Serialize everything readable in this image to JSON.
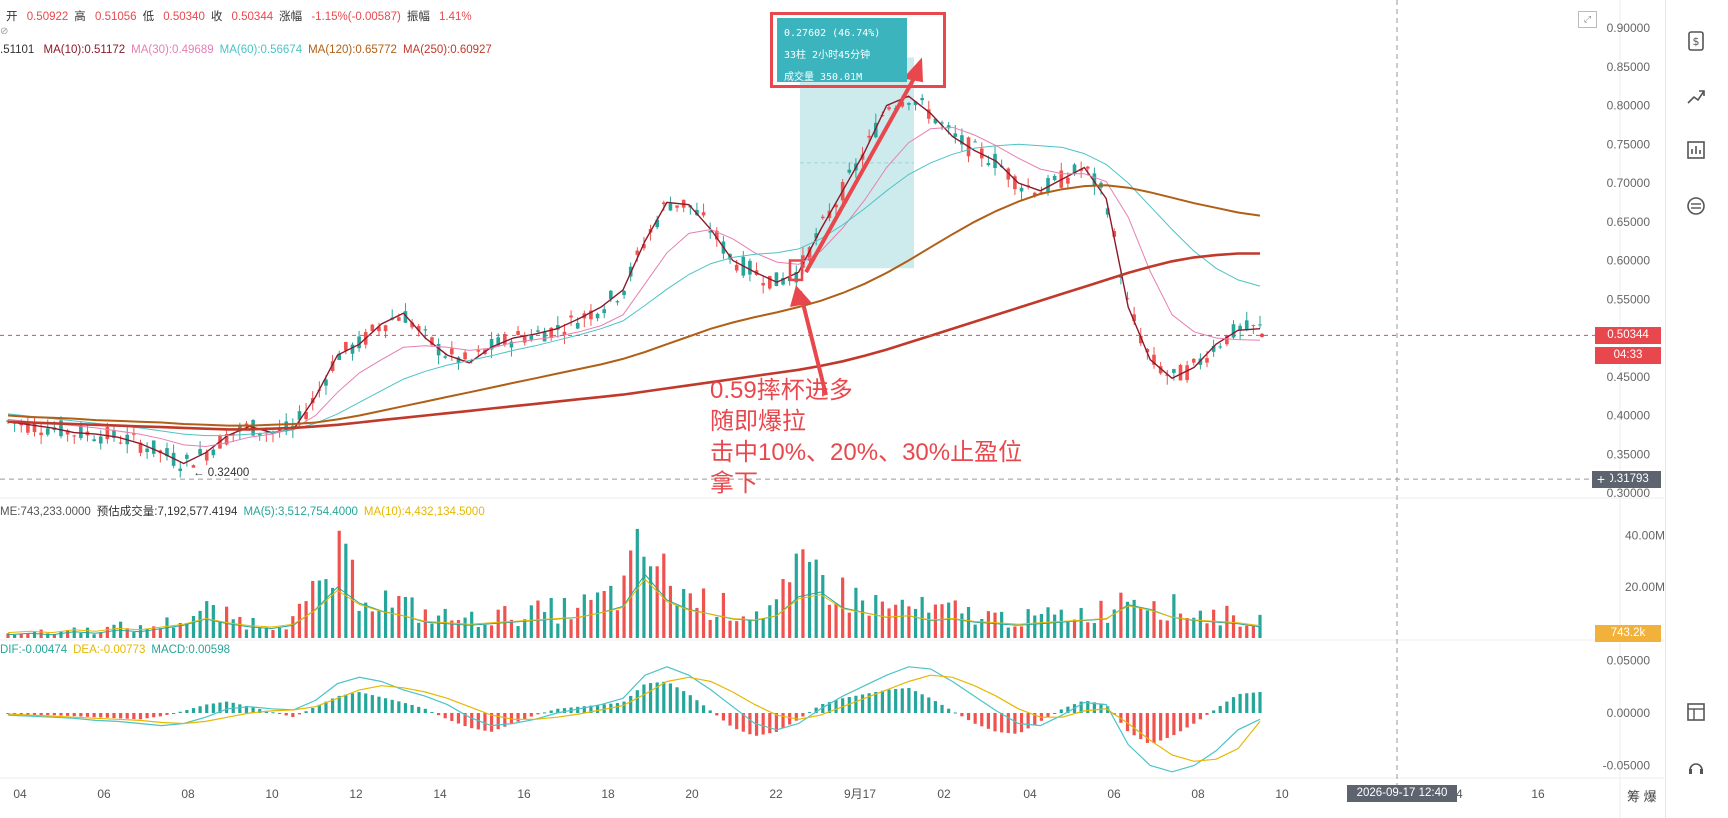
{
  "header": {
    "ohlc": [
      {
        "label": "开",
        "value": "0.50922"
      },
      {
        "label": "高",
        "value": "0.51056"
      },
      {
        "label": "低",
        "value": "0.50340"
      },
      {
        "label": "收",
        "value": "0.50344"
      },
      {
        "label": "涨幅",
        "value": "-1.15%(-0.00587)"
      },
      {
        "label": "振幅",
        "value": "1.41%"
      }
    ],
    "ma_lead": ".51101",
    "ma_lines": [
      {
        "text": "MA(10):0.51172",
        "color": "#8b1a2b"
      },
      {
        "text": "MA(30):0.49689",
        "color": "#e67fb3"
      },
      {
        "text": "MA(60):0.56674",
        "color": "#4cc3c7"
      },
      {
        "text": "MA(120):0.65772",
        "color": "#b05f16"
      },
      {
        "text": "MA(250):0.60927",
        "color": "#c0392b"
      }
    ]
  },
  "volume_header": [
    {
      "text": "ME:743,233.0000",
      "color": "#555555"
    },
    {
      "text": "预估成交量:7,192,577.4194",
      "color": "#333333"
    },
    {
      "text": "MA(5):3,512,754.4000",
      "color": "#26a69a"
    },
    {
      "text": "MA(10):4,432,134.5000",
      "color": "#e6b800"
    }
  ],
  "macd_header": [
    {
      "text": "DIF:-0.00474",
      "color": "#26a69a"
    },
    {
      "text": "DEA:-0.00773",
      "color": "#e6b800"
    },
    {
      "text": "MACD:0.00598",
      "color": "#26a69a"
    }
  ],
  "price_axis": [
    "0.90000",
    "0.85000",
    "0.80000",
    "0.75000",
    "0.70000",
    "0.65000",
    "0.60000",
    "0.55000",
    "0.50000",
    "0.45000",
    "0.40000",
    "0.35000",
    "0.30000"
  ],
  "volume_axis": [
    "40.00M",
    "20.00M"
  ],
  "macd_axis": [
    "0.05000",
    "0.00000",
    "-0.05000"
  ],
  "time_axis": [
    {
      "label": "04",
      "x": 20
    },
    {
      "label": "06",
      "x": 104
    },
    {
      "label": "08",
      "x": 188
    },
    {
      "label": "10",
      "x": 272
    },
    {
      "label": "12",
      "x": 356
    },
    {
      "label": "14",
      "x": 440
    },
    {
      "label": "16",
      "x": 524
    },
    {
      "label": "18",
      "x": 608
    },
    {
      "label": "20",
      "x": 692
    },
    {
      "label": "22",
      "x": 776
    },
    {
      "label": "9月17",
      "x": 860
    },
    {
      "label": "02",
      "x": 944
    },
    {
      "label": "04",
      "x": 1030
    },
    {
      "label": "06",
      "x": 1114
    },
    {
      "label": "08",
      "x": 1198
    },
    {
      "label": "10",
      "x": 1282
    },
    {
      "label": "14",
      "x": 1456
    },
    {
      "label": "16",
      "x": 1538
    }
  ],
  "current_price": "0.50344",
  "countdown": "04:33",
  "cursor_price": "0.31793",
  "cursor_time": "2026-09-17 12:40",
  "current_volume": "743.2k",
  "low_marker": "← 0.32400",
  "tooltip": {
    "line1": "0.27602 (46.74%)",
    "line2": "33柱 2小时45分钟",
    "line3": "成交量 350.01M"
  },
  "annotation": [
    "0.59摔杯进多",
    "随即爆拉",
    "击中10%、20%、30%止盈位",
    "拿下"
  ],
  "bottom_right": "筹 爆",
  "colors": {
    "up": "#26a69a",
    "down": "#ef5350",
    "annotation": "#e8484d",
    "measure": "#cdebed"
  },
  "chart_data": [
    {
      "type": "candlestick",
      "title": "",
      "ylim": [
        0.3,
        0.9
      ],
      "series": [
        {
          "name": "MA(10)",
          "values": [
            0.392,
            0.388,
            0.384,
            0.378,
            0.376,
            0.372,
            0.364,
            0.352,
            0.338,
            0.352,
            0.374,
            0.386,
            0.378,
            0.382,
            0.424,
            0.478,
            0.492,
            0.518,
            0.532,
            0.5,
            0.478,
            0.468,
            0.488,
            0.5,
            0.505,
            0.512,
            0.525,
            0.54,
            0.562,
            0.625,
            0.675,
            0.672,
            0.64,
            0.6,
            0.585,
            0.572,
            0.585,
            0.64,
            0.69,
            0.74,
            0.8,
            0.812,
            0.79,
            0.76,
            0.742,
            0.728,
            0.7,
            0.69,
            0.705,
            0.72,
            0.68,
            0.54,
            0.472,
            0.448,
            0.462,
            0.492,
            0.51,
            0.512
          ]
        },
        {
          "name": "MA(30)",
          "values": [
            0.395,
            0.392,
            0.39,
            0.387,
            0.384,
            0.38,
            0.376,
            0.37,
            0.362,
            0.36,
            0.365,
            0.372,
            0.376,
            0.383,
            0.4,
            0.43,
            0.455,
            0.472,
            0.488,
            0.49,
            0.488,
            0.484,
            0.487,
            0.494,
            0.498,
            0.502,
            0.508,
            0.516,
            0.53,
            0.57,
            0.61,
            0.635,
            0.64,
            0.628,
            0.61,
            0.598,
            0.595,
            0.612,
            0.642,
            0.678,
            0.72,
            0.752,
            0.77,
            0.772,
            0.762,
            0.748,
            0.732,
            0.718,
            0.712,
            0.712,
            0.702,
            0.656,
            0.586,
            0.53,
            0.508,
            0.5,
            0.498,
            0.497
          ]
        },
        {
          "name": "MA(60)",
          "values": [
            0.402,
            0.399,
            0.396,
            0.393,
            0.39,
            0.387,
            0.384,
            0.38,
            0.376,
            0.374,
            0.374,
            0.376,
            0.378,
            0.382,
            0.39,
            0.402,
            0.417,
            0.432,
            0.447,
            0.457,
            0.465,
            0.471,
            0.477,
            0.484,
            0.49,
            0.497,
            0.504,
            0.512,
            0.522,
            0.542,
            0.563,
            0.582,
            0.596,
            0.604,
            0.608,
            0.61,
            0.615,
            0.628,
            0.646,
            0.667,
            0.69,
            0.711,
            0.726,
            0.737,
            0.745,
            0.748,
            0.75,
            0.748,
            0.746,
            0.738,
            0.724,
            0.7,
            0.67,
            0.64,
            0.612,
            0.59,
            0.575,
            0.567
          ]
        },
        {
          "name": "MA(120)",
          "values": [
            0.4,
            0.398,
            0.397,
            0.396,
            0.394,
            0.393,
            0.392,
            0.391,
            0.389,
            0.388,
            0.387,
            0.387,
            0.388,
            0.389,
            0.391,
            0.395,
            0.4,
            0.406,
            0.412,
            0.418,
            0.424,
            0.43,
            0.436,
            0.442,
            0.448,
            0.454,
            0.46,
            0.466,
            0.473,
            0.482,
            0.492,
            0.502,
            0.512,
            0.52,
            0.527,
            0.533,
            0.54,
            0.548,
            0.558,
            0.57,
            0.584,
            0.6,
            0.617,
            0.634,
            0.65,
            0.664,
            0.676,
            0.686,
            0.692,
            0.696,
            0.697,
            0.694,
            0.688,
            0.681,
            0.674,
            0.668,
            0.662,
            0.658
          ]
        },
        {
          "name": "MA(250)",
          "values": [
            0.392,
            0.391,
            0.39,
            0.389,
            0.388,
            0.387,
            0.386,
            0.385,
            0.384,
            0.383,
            0.382,
            0.382,
            0.383,
            0.384,
            0.386,
            0.388,
            0.391,
            0.394,
            0.397,
            0.4,
            0.403,
            0.406,
            0.409,
            0.412,
            0.415,
            0.418,
            0.421,
            0.424,
            0.427,
            0.431,
            0.435,
            0.439,
            0.443,
            0.447,
            0.451,
            0.455,
            0.459,
            0.464,
            0.47,
            0.477,
            0.485,
            0.494,
            0.503,
            0.512,
            0.521,
            0.53,
            0.539,
            0.548,
            0.557,
            0.566,
            0.575,
            0.584,
            0.592,
            0.599,
            0.604,
            0.607,
            0.609,
            0.609
          ]
        }
      ]
    },
    {
      "type": "bar",
      "title": "",
      "ylim": [
        0,
        50
      ],
      "series": [
        {
          "name": "volume",
          "values": [
            2,
            3,
            2,
            4,
            3,
            5,
            4,
            6,
            8,
            12,
            9,
            7,
            6,
            8,
            18,
            32,
            22,
            17,
            14,
            10,
            9,
            8,
            9,
            10,
            11,
            12,
            13,
            16,
            20,
            40,
            24,
            18,
            15,
            12,
            11,
            14,
            26,
            29,
            19,
            16,
            13,
            14,
            11,
            12,
            10,
            9,
            8,
            9,
            10,
            11,
            12,
            21,
            18,
            13,
            11,
            10,
            9,
            7
          ]
        }
      ]
    },
    {
      "type": "bar",
      "title": "",
      "ylim": [
        -0.06,
        0.06
      ],
      "series": [
        {
          "name": "MACD",
          "values": [
            -0.001,
            -0.002,
            -0.002,
            -0.003,
            -0.004,
            -0.005,
            -0.006,
            -0.003,
            0.002,
            0.008,
            0.011,
            0.006,
            0.001,
            -0.004,
            0.006,
            0.016,
            0.02,
            0.015,
            0.01,
            0.004,
            -0.006,
            -0.014,
            -0.018,
            -0.01,
            -0.002,
            0.004,
            0.006,
            0.008,
            0.01,
            0.028,
            0.03,
            0.018,
            0.002,
            -0.014,
            -0.022,
            -0.018,
            -0.006,
            0.008,
            0.014,
            0.018,
            0.022,
            0.024,
            0.014,
            0.002,
            -0.01,
            -0.018,
            -0.02,
            -0.008,
            0.004,
            0.012,
            0.008,
            -0.018,
            -0.03,
            -0.022,
            -0.01,
            0.004,
            0.018,
            0.02
          ]
        },
        {
          "name": "DIF",
          "values": [
            -0.002,
            -0.003,
            -0.004,
            -0.005,
            -0.007,
            -0.008,
            -0.01,
            -0.012,
            -0.01,
            -0.004,
            0.004,
            0.006,
            0.004,
            0.003,
            0.012,
            0.028,
            0.034,
            0.03,
            0.022,
            0.016,
            0.008,
            -0.004,
            -0.012,
            -0.01,
            -0.006,
            0.0,
            0.004,
            0.008,
            0.014,
            0.036,
            0.044,
            0.036,
            0.022,
            0.006,
            -0.01,
            -0.016,
            -0.01,
            0.004,
            0.016,
            0.026,
            0.036,
            0.044,
            0.042,
            0.03,
            0.016,
            0.002,
            -0.01,
            -0.012,
            -0.002,
            0.01,
            0.008,
            -0.03,
            -0.05,
            -0.056,
            -0.05,
            -0.036,
            -0.016,
            -0.006
          ]
        },
        {
          "name": "DEA",
          "values": [
            -0.001,
            -0.002,
            -0.003,
            -0.004,
            -0.005,
            -0.006,
            -0.007,
            -0.009,
            -0.01,
            -0.008,
            -0.004,
            0.0,
            0.002,
            0.003,
            0.006,
            0.014,
            0.022,
            0.026,
            0.024,
            0.02,
            0.014,
            0.006,
            -0.002,
            -0.006,
            -0.006,
            -0.004,
            -0.001,
            0.003,
            0.007,
            0.018,
            0.03,
            0.034,
            0.03,
            0.02,
            0.008,
            -0.002,
            -0.006,
            -0.002,
            0.006,
            0.014,
            0.022,
            0.03,
            0.036,
            0.034,
            0.026,
            0.016,
            0.004,
            -0.004,
            -0.004,
            0.002,
            0.004,
            -0.01,
            -0.026,
            -0.04,
            -0.046,
            -0.044,
            -0.034,
            -0.008
          ]
        }
      ]
    }
  ]
}
